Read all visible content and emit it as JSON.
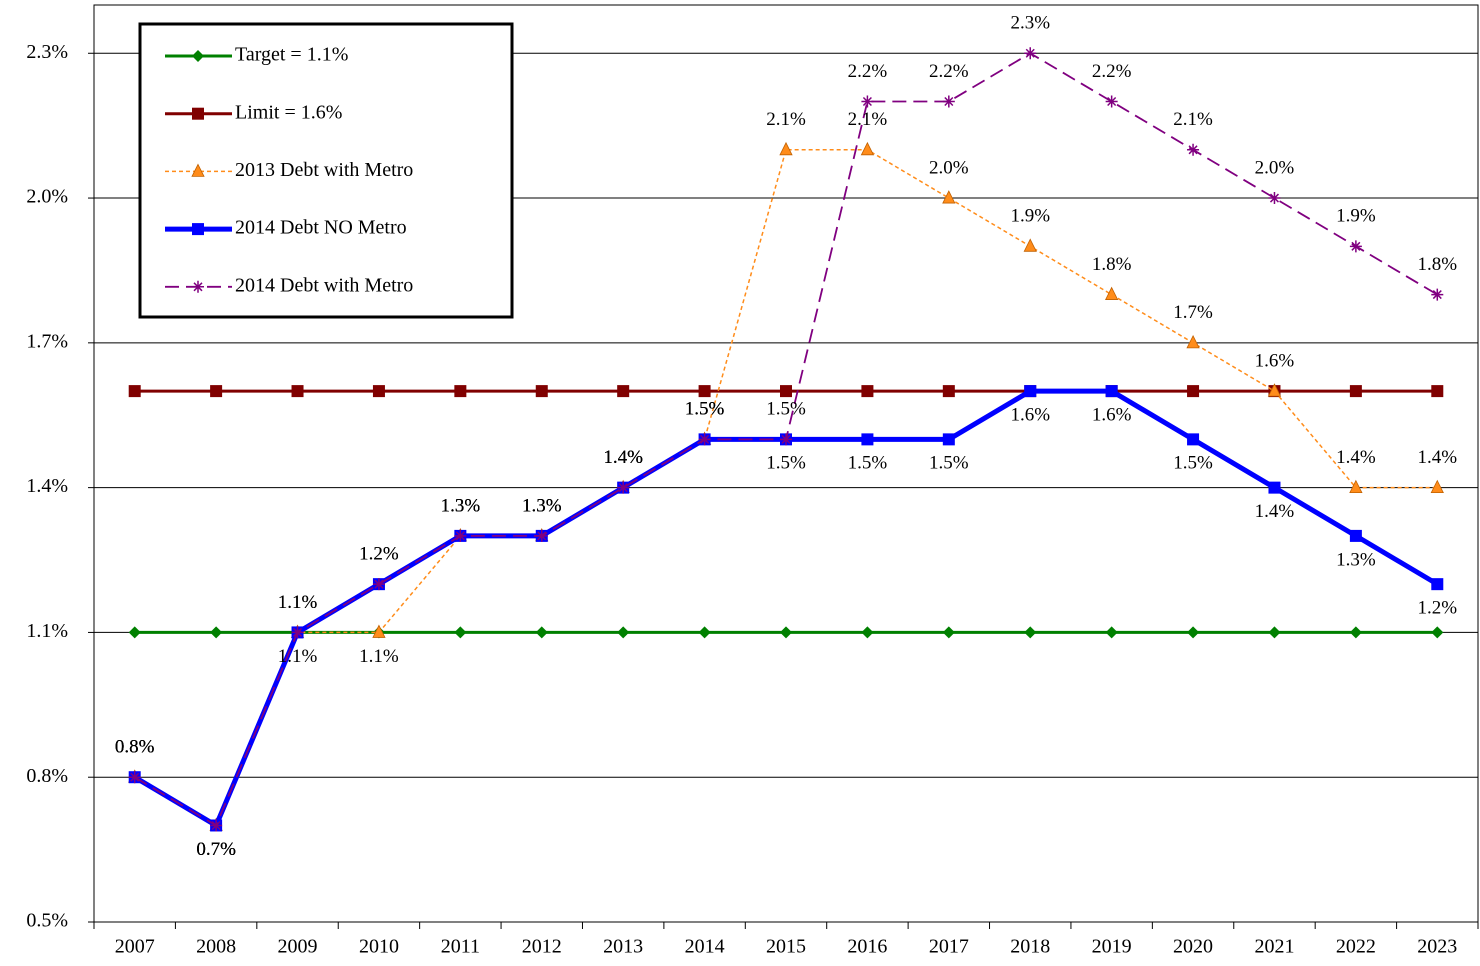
{
  "chart_data": {
    "type": "line",
    "categories": [
      "2007",
      "2008",
      "2009",
      "2010",
      "2011",
      "2012",
      "2013",
      "2014",
      "2015",
      "2016",
      "2017",
      "2018",
      "2019",
      "2020",
      "2021",
      "2022",
      "2023"
    ],
    "series": [
      {
        "name": "Target = 1.1%",
        "color": "#008000",
        "marker": "diamond",
        "values": [
          1.1,
          1.1,
          1.1,
          1.1,
          1.1,
          1.1,
          1.1,
          1.1,
          1.1,
          1.1,
          1.1,
          1.1,
          1.1,
          1.1,
          1.1,
          1.1,
          1.1
        ]
      },
      {
        "name": "Limit = 1.6%",
        "color": "#800000",
        "marker": "square",
        "values": [
          1.6,
          1.6,
          1.6,
          1.6,
          1.6,
          1.6,
          1.6,
          1.6,
          1.6,
          1.6,
          1.6,
          1.6,
          1.6,
          1.6,
          1.6,
          1.6,
          1.6
        ]
      },
      {
        "name": "2013 Debt with Metro",
        "color": "#ff8c1a",
        "marker": "triangle",
        "values": [
          0.8,
          0.7,
          1.1,
          1.1,
          1.3,
          1.3,
          1.4,
          1.5,
          2.1,
          2.1,
          2.0,
          1.9,
          1.8,
          1.7,
          1.6,
          1.4,
          1.4
        ],
        "value_labels": [
          "0.8%",
          "0.7%",
          "1.1%",
          "1.1%",
          "1.3%",
          "1.3%",
          "1.4%",
          "1.5%",
          "2.1%",
          "2.1%",
          "2.0%",
          "1.9%",
          "1.8%",
          "1.7%",
          "1.6%",
          "1.4%",
          "1.4%"
        ]
      },
      {
        "name": "2014 Debt NO Metro",
        "color": "#0000ff",
        "marker": "square",
        "values": [
          0.8,
          0.7,
          1.1,
          1.2,
          1.3,
          1.3,
          1.4,
          1.5,
          1.5,
          1.5,
          1.5,
          1.6,
          1.6,
          1.5,
          1.4,
          1.3,
          1.2
        ],
        "value_labels": [
          "0.8%",
          "0.7%",
          "1.1%",
          "1.2%",
          "1.3%",
          "1.3%",
          "1.4%",
          "1.5%",
          "1.5%",
          "1.5%",
          "1.5%",
          "1.6%",
          "1.6%",
          "1.5%",
          "1.4%",
          "1.3%",
          "1.2%"
        ]
      },
      {
        "name": "2014 Debt with Metro",
        "color": "#800080",
        "marker": "asterisk",
        "values": [
          0.8,
          0.7,
          1.1,
          1.2,
          1.3,
          1.3,
          1.4,
          1.5,
          1.5,
          2.2,
          2.2,
          2.3,
          2.2,
          2.1,
          2.0,
          1.9,
          1.8
        ],
        "value_labels": [
          "0.8%",
          "0.7%",
          "1.1%",
          "1.2%",
          "1.3%",
          "1.3%",
          "1.4%",
          "1.5%",
          "1.5%",
          "2.2%",
          "2.2%",
          "2.3%",
          "2.2%",
          "2.1%",
          "2.0%",
          "1.9%",
          "1.8%"
        ]
      }
    ],
    "ylim": [
      0.5,
      2.4
    ],
    "yticks": [
      {
        "value": 0.5,
        "label": "0.5%"
      },
      {
        "value": 0.8,
        "label": "0.8%"
      },
      {
        "value": 1.1,
        "label": "1.1%"
      },
      {
        "value": 1.4,
        "label": "1.4%"
      },
      {
        "value": 1.7,
        "label": "1.7%"
      },
      {
        "value": 2.0,
        "label": "2.0%"
      },
      {
        "value": 2.3,
        "label": "2.3%"
      }
    ],
    "grid": true,
    "legend": "upper left"
  }
}
